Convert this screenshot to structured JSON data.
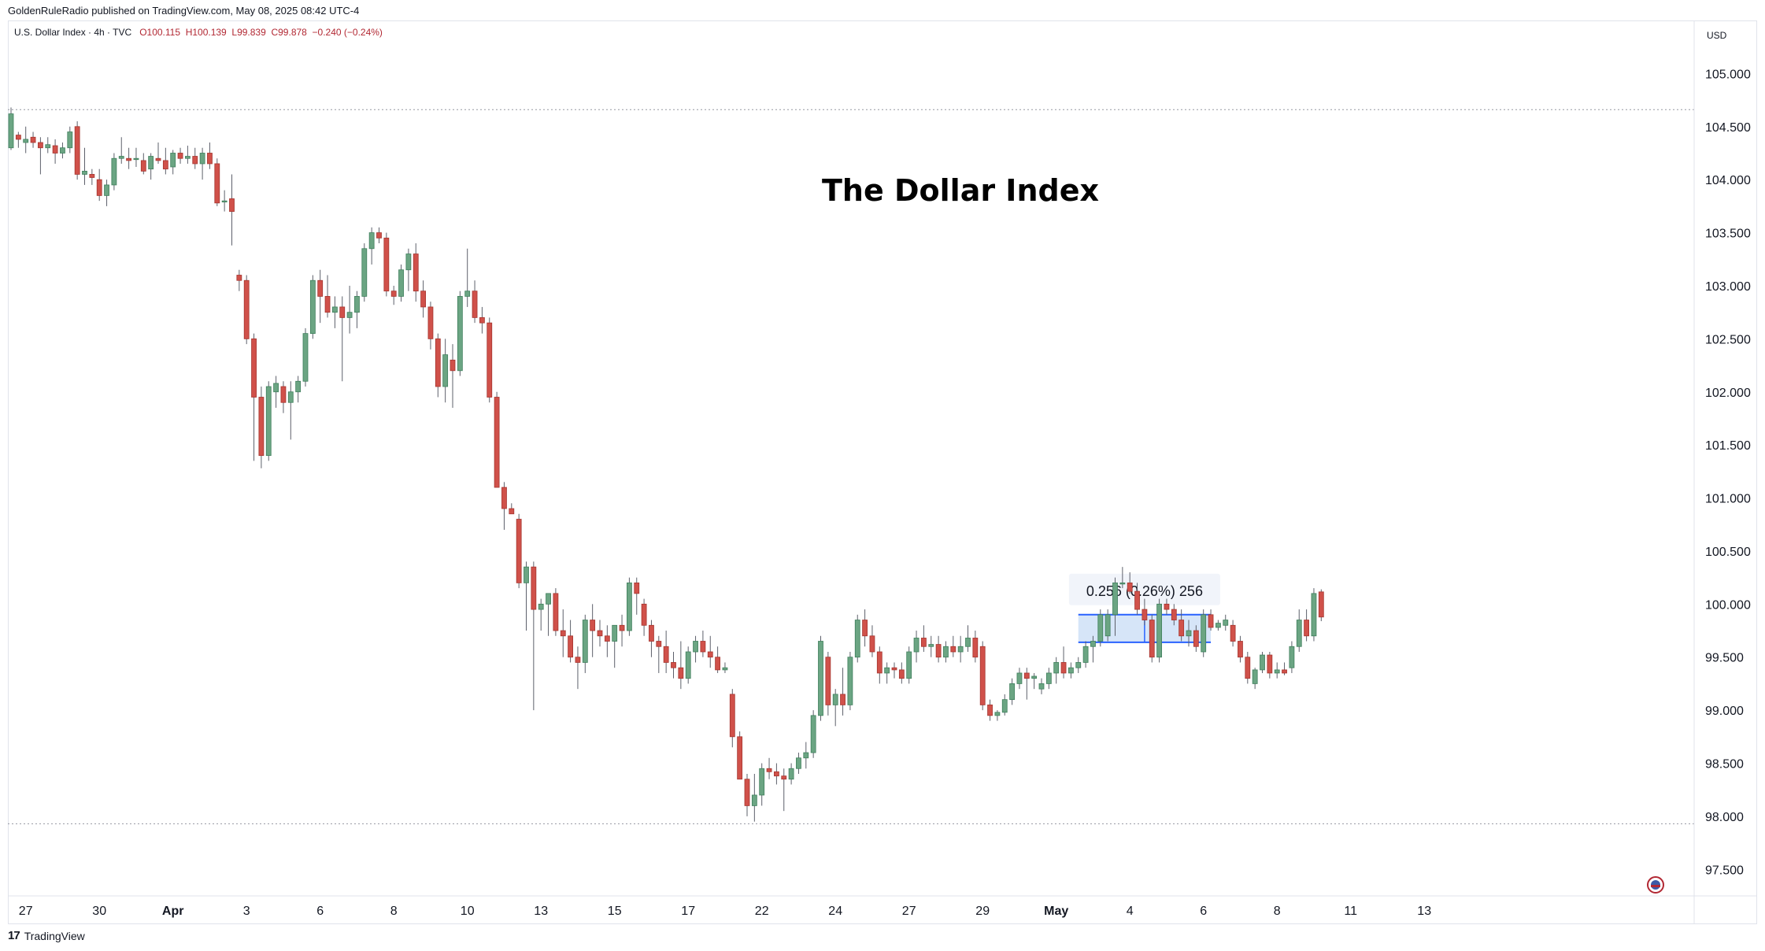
{
  "header": {
    "published_by": "GoldenRuleRadio published on TradingView.com, May 08, 2025 08:42 UTC-4"
  },
  "legend": {
    "symbol": "U.S. Dollar Index · 4h · TVC",
    "open": "O100.115",
    "high": "H100.139",
    "low": "L99.839",
    "close": "C99.878",
    "change": "−0.240 (−0.24%)"
  },
  "currency_label": "USD",
  "footer": {
    "brand": "TradingView"
  },
  "colors": {
    "up": "#6ba583",
    "down": "#d0514a",
    "wick": "#5d606b",
    "range_fill": "#cfe0f7",
    "range_line": "#2962ff"
  },
  "chart_data": {
    "type": "candlestick",
    "title": "The Dollar Index",
    "ylim": [
      97.25,
      105.5
    ],
    "y_ticks": [
      "105.000",
      "104.500",
      "104.000",
      "103.500",
      "103.000",
      "102.500",
      "102.000",
      "101.500",
      "101.000",
      "100.500",
      "100.000",
      "99.500",
      "99.000",
      "98.500",
      "98.000",
      "97.500"
    ],
    "x_ticks": [
      {
        "label": "27",
        "bar": 2
      },
      {
        "label": "30",
        "bar": 12
      },
      {
        "label": "Apr",
        "bar": 22
      },
      {
        "label": "3",
        "bar": 32
      },
      {
        "label": "6",
        "bar": 42
      },
      {
        "label": "8",
        "bar": 52
      },
      {
        "label": "10",
        "bar": 62
      },
      {
        "label": "13",
        "bar": 72
      },
      {
        "label": "15",
        "bar": 82
      },
      {
        "label": "17",
        "bar": 92
      },
      {
        "label": "22",
        "bar": 102
      },
      {
        "label": "24",
        "bar": 112
      },
      {
        "label": "27",
        "bar": 122
      },
      {
        "label": "29",
        "bar": 132
      },
      {
        "label": "May",
        "bar": 142
      },
      {
        "label": "4",
        "bar": 152
      },
      {
        "label": "6",
        "bar": 162
      },
      {
        "label": "8",
        "bar": 172
      },
      {
        "label": "11",
        "bar": 182
      },
      {
        "label": "13",
        "bar": 192
      }
    ],
    "high_line": 104.66,
    "low_line": 97.93,
    "measure_range": {
      "label": "0.256 (0.26%) 256",
      "low": 99.64,
      "high": 99.9,
      "from_bar": 145,
      "to_bar": 163
    },
    "candles": [
      [
        104.3,
        104.68,
        104.28,
        104.62
      ],
      [
        104.42,
        104.45,
        104.3,
        104.38
      ],
      [
        104.35,
        104.5,
        104.25,
        104.38
      ],
      [
        104.4,
        104.45,
        104.3,
        104.35
      ],
      [
        104.35,
        104.4,
        104.05,
        104.3
      ],
      [
        104.3,
        104.4,
        104.25,
        104.33
      ],
      [
        104.32,
        104.38,
        104.15,
        104.25
      ],
      [
        104.25,
        104.35,
        104.2,
        104.3
      ],
      [
        104.3,
        104.5,
        104.25,
        104.45
      ],
      [
        104.5,
        104.55,
        104.0,
        104.05
      ],
      [
        104.05,
        104.3,
        103.95,
        104.08
      ],
      [
        104.05,
        104.1,
        103.95,
        104.02
      ],
      [
        104.0,
        104.1,
        103.8,
        103.85
      ],
      [
        103.85,
        104.0,
        103.75,
        103.95
      ],
      [
        103.95,
        104.25,
        103.9,
        104.2
      ],
      [
        104.2,
        104.4,
        104.15,
        104.22
      ],
      [
        104.2,
        104.3,
        104.1,
        104.18
      ],
      [
        104.2,
        104.3,
        104.12,
        104.2
      ],
      [
        104.18,
        104.25,
        104.05,
        104.08
      ],
      [
        104.1,
        104.25,
        104.0,
        104.22
      ],
      [
        104.2,
        104.35,
        104.15,
        104.18
      ],
      [
        104.18,
        104.3,
        104.05,
        104.1
      ],
      [
        104.12,
        104.28,
        104.05,
        104.25
      ],
      [
        104.25,
        104.3,
        104.15,
        104.2
      ],
      [
        104.2,
        104.32,
        104.15,
        104.22
      ],
      [
        104.22,
        104.3,
        104.1,
        104.15
      ],
      [
        104.15,
        104.3,
        104.0,
        104.25
      ],
      [
        104.25,
        104.35,
        104.1,
        104.15
      ],
      [
        104.15,
        104.2,
        103.75,
        103.78
      ],
      [
        103.8,
        103.9,
        103.7,
        103.8
      ],
      [
        103.82,
        104.05,
        103.38,
        103.7
      ],
      [
        103.1,
        103.15,
        102.95,
        103.05
      ],
      [
        103.05,
        103.1,
        102.45,
        102.5
      ],
      [
        102.5,
        102.55,
        101.35,
        101.95
      ],
      [
        101.95,
        102.05,
        101.28,
        101.4
      ],
      [
        101.4,
        102.1,
        101.35,
        102.05
      ],
      [
        102.0,
        102.15,
        101.85,
        102.08
      ],
      [
        102.05,
        102.1,
        101.8,
        101.9
      ],
      [
        101.9,
        102.1,
        101.55,
        102.0
      ],
      [
        102.0,
        102.15,
        101.9,
        102.1
      ],
      [
        102.1,
        102.6,
        102.05,
        102.55
      ],
      [
        102.55,
        103.1,
        102.5,
        103.05
      ],
      [
        103.05,
        103.15,
        102.65,
        102.9
      ],
      [
        102.9,
        103.1,
        102.7,
        102.75
      ],
      [
        102.75,
        102.9,
        102.6,
        102.8
      ],
      [
        102.8,
        102.9,
        102.1,
        102.7
      ],
      [
        102.7,
        103.0,
        102.55,
        102.75
      ],
      [
        102.75,
        102.95,
        102.6,
        102.9
      ],
      [
        102.9,
        103.4,
        102.85,
        103.35
      ],
      [
        103.35,
        103.55,
        103.2,
        103.5
      ],
      [
        103.5,
        103.55,
        103.4,
        103.45
      ],
      [
        103.45,
        103.5,
        102.9,
        102.95
      ],
      [
        102.95,
        103.0,
        102.82,
        102.9
      ],
      [
        102.9,
        103.2,
        102.85,
        103.15
      ],
      [
        103.15,
        103.35,
        102.95,
        103.3
      ],
      [
        103.3,
        103.4,
        102.85,
        102.95
      ],
      [
        102.95,
        103.05,
        102.7,
        102.8
      ],
      [
        102.8,
        102.85,
        102.4,
        102.5
      ],
      [
        102.5,
        102.55,
        101.95,
        102.05
      ],
      [
        102.05,
        102.5,
        101.9,
        102.35
      ],
      [
        102.3,
        102.45,
        101.85,
        102.2
      ],
      [
        102.2,
        102.95,
        102.15,
        102.9
      ],
      [
        102.9,
        103.35,
        102.8,
        102.95
      ],
      [
        102.95,
        103.05,
        102.65,
        102.7
      ],
      [
        102.7,
        102.8,
        102.55,
        102.65
      ],
      [
        102.65,
        102.7,
        101.9,
        101.95
      ],
      [
        101.95,
        102.0,
        101.15,
        101.1
      ],
      [
        101.1,
        101.15,
        100.7,
        100.9
      ],
      [
        100.9,
        100.95,
        100.85,
        100.85
      ],
      [
        100.8,
        100.85,
        100.15,
        100.2
      ],
      [
        100.2,
        100.4,
        99.75,
        100.35
      ],
      [
        100.35,
        100.4,
        99.0,
        99.95
      ],
      [
        99.95,
        100.05,
        99.75,
        100.0
      ],
      [
        100.0,
        100.1,
        99.7,
        100.1
      ],
      [
        100.1,
        100.15,
        99.7,
        99.75
      ],
      [
        99.75,
        99.95,
        99.5,
        99.7
      ],
      [
        99.7,
        99.85,
        99.45,
        99.5
      ],
      [
        99.5,
        99.6,
        99.2,
        99.45
      ],
      [
        99.45,
        99.9,
        99.35,
        99.85
      ],
      [
        99.85,
        100.0,
        99.5,
        99.75
      ],
      [
        99.75,
        99.85,
        99.6,
        99.7
      ],
      [
        99.7,
        99.8,
        99.5,
        99.65
      ],
      [
        99.65,
        99.8,
        99.4,
        99.8
      ],
      [
        99.8,
        99.9,
        99.6,
        99.75
      ],
      [
        99.75,
        100.25,
        99.7,
        100.2
      ],
      [
        100.2,
        100.25,
        99.9,
        100.1
      ],
      [
        100.0,
        100.05,
        99.7,
        99.8
      ],
      [
        99.8,
        99.85,
        99.5,
        99.65
      ],
      [
        99.65,
        99.7,
        99.35,
        99.6
      ],
      [
        99.6,
        99.75,
        99.35,
        99.45
      ],
      [
        99.45,
        99.55,
        99.3,
        99.4
      ],
      [
        99.4,
        99.65,
        99.2,
        99.3
      ],
      [
        99.3,
        99.6,
        99.25,
        99.55
      ],
      [
        99.55,
        99.7,
        99.45,
        99.65
      ],
      [
        99.65,
        99.75,
        99.5,
        99.55
      ],
      [
        99.55,
        99.7,
        99.4,
        99.5
      ],
      [
        99.5,
        99.6,
        99.35,
        99.38
      ],
      [
        99.38,
        99.45,
        99.35,
        99.4
      ],
      [
        99.15,
        99.2,
        98.65,
        98.75
      ],
      [
        98.75,
        98.8,
        98.35,
        98.35
      ],
      [
        98.35,
        98.4,
        98.0,
        98.1
      ],
      [
        98.1,
        98.4,
        97.95,
        98.2
      ],
      [
        98.2,
        98.5,
        98.1,
        98.45
      ],
      [
        98.45,
        98.55,
        98.35,
        98.42
      ],
      [
        98.42,
        98.5,
        98.3,
        98.38
      ],
      [
        98.38,
        98.45,
        98.05,
        98.35
      ],
      [
        98.35,
        98.5,
        98.3,
        98.45
      ],
      [
        98.45,
        98.6,
        98.4,
        98.55
      ],
      [
        98.55,
        98.7,
        98.45,
        98.6
      ],
      [
        98.6,
        99.0,
        98.55,
        98.95
      ],
      [
        98.95,
        99.7,
        98.9,
        99.65
      ],
      [
        99.5,
        99.55,
        98.95,
        99.05
      ],
      [
        99.05,
        99.2,
        98.85,
        99.15
      ],
      [
        99.15,
        99.4,
        98.95,
        99.05
      ],
      [
        99.05,
        99.55,
        99.0,
        99.5
      ],
      [
        99.5,
        99.9,
        99.45,
        99.85
      ],
      [
        99.85,
        99.95,
        99.6,
        99.7
      ],
      [
        99.7,
        99.8,
        99.5,
        99.55
      ],
      [
        99.55,
        99.6,
        99.25,
        99.35
      ],
      [
        99.35,
        99.45,
        99.25,
        99.4
      ],
      [
        99.4,
        99.45,
        99.3,
        99.38
      ],
      [
        99.38,
        99.45,
        99.25,
        99.3
      ],
      [
        99.3,
        99.6,
        99.25,
        99.55
      ],
      [
        99.55,
        99.75,
        99.45,
        99.68
      ],
      [
        99.68,
        99.8,
        99.55,
        99.6
      ],
      [
        99.6,
        99.7,
        99.5,
        99.62
      ],
      [
        99.62,
        99.7,
        99.45,
        99.5
      ],
      [
        99.5,
        99.65,
        99.45,
        99.6
      ],
      [
        99.6,
        99.7,
        99.5,
        99.55
      ],
      [
        99.55,
        99.7,
        99.45,
        99.6
      ],
      [
        99.6,
        99.8,
        99.55,
        99.68
      ],
      [
        99.68,
        99.75,
        99.45,
        99.5
      ],
      [
        99.6,
        99.65,
        99.0,
        99.05
      ],
      [
        99.05,
        99.1,
        98.9,
        98.95
      ],
      [
        98.95,
        99.0,
        98.9,
        98.98
      ],
      [
        98.98,
        99.15,
        98.95,
        99.1
      ],
      [
        99.1,
        99.3,
        99.05,
        99.25
      ],
      [
        99.25,
        99.4,
        99.2,
        99.35
      ],
      [
        99.35,
        99.4,
        99.1,
        99.3
      ],
      [
        99.3,
        99.35,
        99.2,
        99.32
      ],
      [
        99.2,
        99.3,
        99.15,
        99.25
      ],
      [
        99.25,
        99.4,
        99.2,
        99.35
      ],
      [
        99.35,
        99.5,
        99.25,
        99.45
      ],
      [
        99.45,
        99.6,
        99.3,
        99.35
      ],
      [
        99.35,
        99.45,
        99.3,
        99.4
      ],
      [
        99.4,
        99.5,
        99.35,
        99.45
      ],
      [
        99.45,
        99.65,
        99.4,
        99.6
      ],
      [
        99.6,
        99.7,
        99.45,
        99.65
      ],
      [
        99.65,
        99.95,
        99.6,
        99.9
      ],
      [
        99.7,
        99.95,
        99.65,
        99.9
      ],
      [
        99.9,
        100.25,
        99.7,
        100.2
      ],
      [
        100.2,
        100.35,
        100.15,
        100.2
      ],
      [
        100.2,
        100.3,
        100.1,
        100.12
      ],
      [
        100.12,
        100.2,
        99.9,
        99.95
      ],
      [
        99.95,
        100.05,
        99.8,
        99.85
      ],
      [
        99.85,
        99.9,
        99.45,
        99.5
      ],
      [
        99.5,
        100.05,
        99.45,
        100.0
      ],
      [
        100.0,
        100.05,
        99.9,
        99.95
      ],
      [
        99.95,
        100.0,
        99.8,
        99.85
      ],
      [
        99.85,
        99.95,
        99.65,
        99.7
      ],
      [
        99.7,
        99.85,
        99.6,
        99.75
      ],
      [
        99.75,
        99.8,
        99.55,
        99.6
      ],
      [
        99.55,
        99.95,
        99.5,
        99.9
      ],
      [
        99.9,
        99.95,
        99.75,
        99.78
      ],
      [
        99.78,
        99.85,
        99.75,
        99.82
      ],
      [
        99.8,
        99.9,
        99.75,
        99.85
      ],
      [
        99.8,
        99.85,
        99.6,
        99.65
      ],
      [
        99.65,
        99.7,
        99.45,
        99.5
      ],
      [
        99.5,
        99.55,
        99.25,
        99.3
      ],
      [
        99.25,
        99.4,
        99.2,
        99.38
      ],
      [
        99.38,
        99.55,
        99.35,
        99.52
      ],
      [
        99.52,
        99.55,
        99.3,
        99.35
      ],
      [
        99.35,
        99.45,
        99.3,
        99.38
      ],
      [
        99.38,
        99.45,
        99.33,
        99.35
      ],
      [
        99.4,
        99.65,
        99.35,
        99.6
      ],
      [
        99.6,
        99.95,
        99.55,
        99.85
      ],
      [
        99.85,
        99.95,
        99.65,
        99.7
      ],
      [
        99.7,
        100.15,
        99.65,
        100.1
      ],
      [
        100.115,
        100.139,
        99.839,
        99.878
      ]
    ]
  }
}
